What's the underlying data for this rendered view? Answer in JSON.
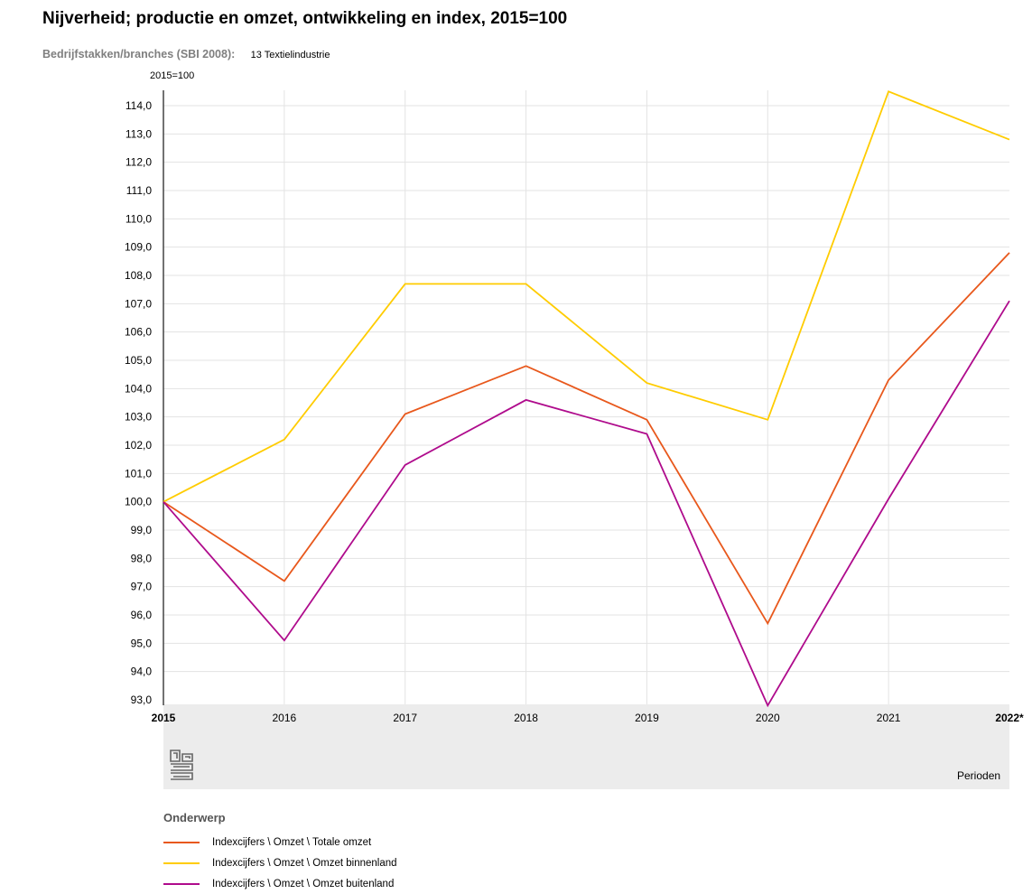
{
  "header": {
    "title": "Nijverheid; productie en omzet, ontwikkeling en index, 2015=100",
    "dimension_label": "Bedrijfstakken/branches (SBI 2008):",
    "dimension_value": "13 Textielindustrie"
  },
  "chart_data": {
    "type": "line",
    "ylabel": "2015=100",
    "xlabel": "Perioden",
    "categories": [
      "2015",
      "2016",
      "2017",
      "2018",
      "2019",
      "2020",
      "2021",
      "2022*"
    ],
    "ylim": [
      93.0,
      114.0
    ],
    "ytick_step": 1.0,
    "yticks": [
      "93,0",
      "94,0",
      "95,0",
      "96,0",
      "97,0",
      "98,0",
      "99,0",
      "100,0",
      "101,0",
      "102,0",
      "103,0",
      "104,0",
      "105,0",
      "106,0",
      "107,0",
      "108,0",
      "109,0",
      "110,0",
      "111,0",
      "112,0",
      "113,0",
      "114,0"
    ],
    "grid": true,
    "legend_title": "Onderwerp",
    "legend_position": "bottom",
    "series": [
      {
        "name": "Indexcijfers \\ Omzet \\ Totale omzet",
        "color": "#e8581c",
        "values": [
          100.0,
          97.2,
          103.1,
          104.8,
          102.9,
          95.7,
          104.3,
          108.8
        ]
      },
      {
        "name": "Indexcijfers \\ Omzet \\ Omzet binnenland",
        "color": "#ffcc00",
        "values": [
          100.0,
          102.2,
          107.7,
          107.7,
          104.2,
          102.9,
          114.5,
          112.8
        ]
      },
      {
        "name": "Indexcijfers \\ Omzet \\ Omzet buitenland",
        "color": "#af0b8c",
        "values": [
          100.0,
          95.1,
          101.3,
          103.6,
          102.4,
          92.8,
          100.1,
          107.1
        ]
      }
    ]
  }
}
